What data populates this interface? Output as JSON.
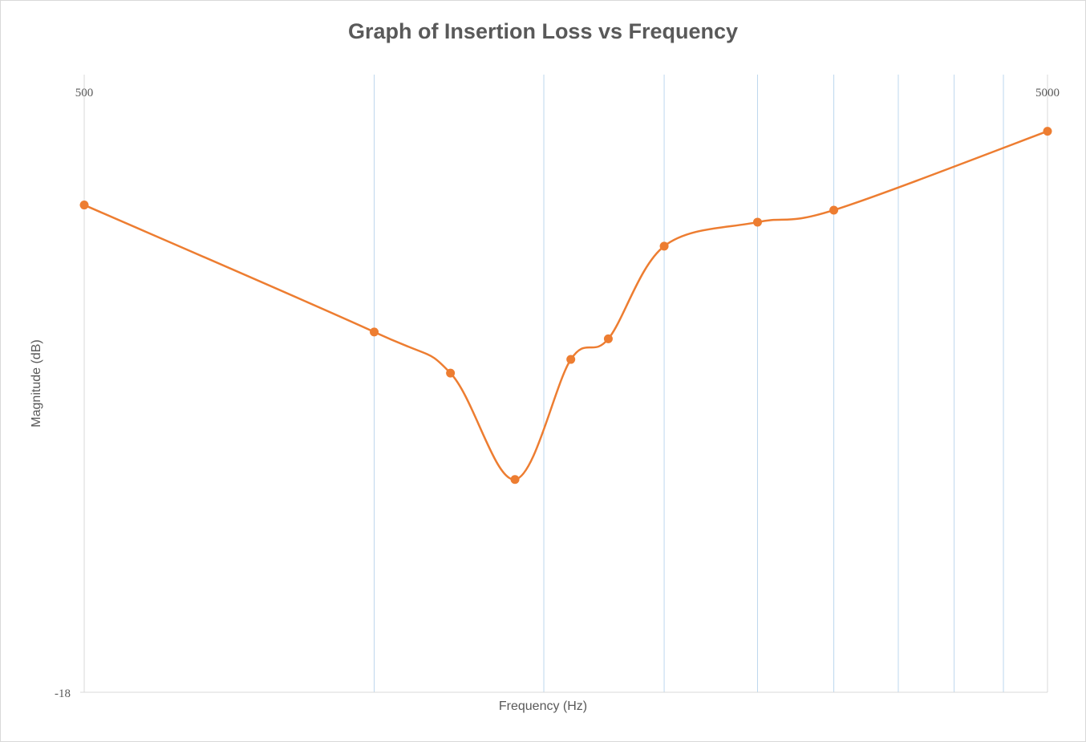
{
  "chart_data": {
    "type": "line",
    "title": "Graph of Insertion Loss vs Frequency",
    "xlabel": "Frequency (Hz)",
    "ylabel": "Magnitude (dB)",
    "x_scale": "log",
    "xlim": [
      500,
      5000
    ],
    "ylim": [
      -18,
      0
    ],
    "x_tick_labels": [
      "500",
      "5000"
    ],
    "y_tick_labels": [
      "-18"
    ],
    "x_gridlines": [
      1000,
      1500,
      2000,
      2500,
      3000,
      3500,
      4000,
      4500
    ],
    "grid": true,
    "smooth": true,
    "series_color": "#ED7D31",
    "grid_color": "#BDD7EE",
    "axis_color": "#D9D9D9",
    "series": [
      {
        "x": [
          500,
          1000,
          1200,
          1400,
          1600,
          1750,
          2000,
          2500,
          3000,
          5000
        ],
        "values": [
          -3.8,
          -7.5,
          -8.7,
          -11.8,
          -8.3,
          -7.7,
          -5.0,
          -4.3,
          -3.95,
          -1.65
        ]
      }
    ]
  }
}
